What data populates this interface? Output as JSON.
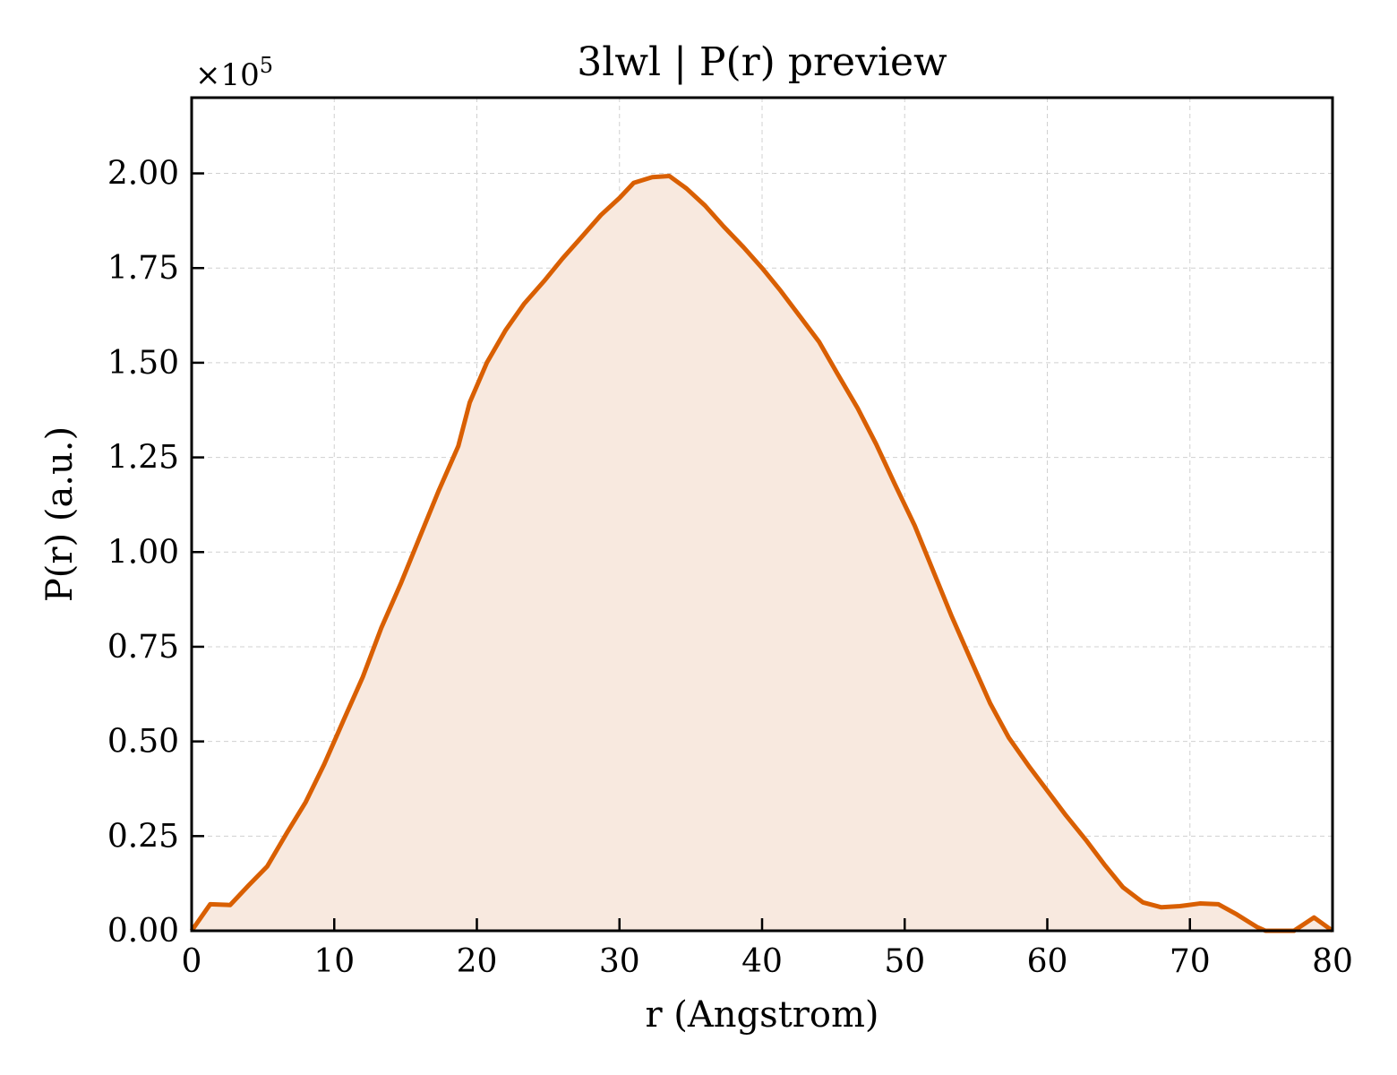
{
  "chart_data": {
    "type": "area",
    "title": "3lwl | P(r) preview",
    "xlabel": "r (Angstrom)",
    "ylabel": "P(r) (a.u.)",
    "y_multiplier": "×10",
    "y_multiplier_exp": "5",
    "xlim": [
      0,
      80
    ],
    "ylim": [
      0,
      2.2
    ],
    "x_ticks": [
      0,
      10,
      20,
      30,
      40,
      50,
      60,
      70,
      80
    ],
    "x_tick_labels": [
      "0",
      "10",
      "20",
      "30",
      "40",
      "50",
      "60",
      "70",
      "80"
    ],
    "y_ticks": [
      0,
      0.25,
      0.5,
      0.75,
      1.0,
      1.25,
      1.5,
      1.75,
      2.0
    ],
    "y_tick_labels": [
      "0.00",
      "0.25",
      "0.50",
      "0.75",
      "1.00",
      "1.25",
      "1.50",
      "1.75",
      "2.00"
    ],
    "grid": true,
    "line_color": "#d95f02",
    "fill_color": "#f8e9df",
    "series": [
      {
        "x": [
          0,
          1.3,
          2.7,
          4.0,
          5.3,
          6.7,
          8.0,
          9.3,
          10.7,
          12.0,
          13.3,
          14.7,
          16.0,
          17.3,
          18.7,
          19.5,
          20.7,
          22.0,
          23.3,
          24.7,
          26.0,
          27.3,
          28.7,
          30.0,
          31.0,
          32.3,
          33.5,
          34.7,
          36.0,
          37.3,
          38.7,
          40.0,
          41.3,
          42.7,
          44.0,
          45.3,
          46.7,
          48.0,
          49.3,
          50.7,
          52.0,
          53.3,
          54.7,
          56.0,
          57.3,
          58.7,
          60.0,
          61.3,
          62.7,
          64.0,
          65.3,
          66.7,
          68.0,
          69.3,
          70.7,
          72.0,
          73.3,
          74.7,
          75.3,
          76.0,
          77.3,
          78.7,
          80.0
        ],
        "y": [
          0,
          0.07,
          0.068,
          0.12,
          0.17,
          0.26,
          0.34,
          0.44,
          0.56,
          0.67,
          0.8,
          0.92,
          1.04,
          1.16,
          1.28,
          1.395,
          1.5,
          1.585,
          1.655,
          1.715,
          1.775,
          1.83,
          1.89,
          1.935,
          1.975,
          1.99,
          1.993,
          1.96,
          1.915,
          1.86,
          1.805,
          1.75,
          1.69,
          1.62,
          1.555,
          1.47,
          1.38,
          1.285,
          1.18,
          1.07,
          0.95,
          0.83,
          0.71,
          0.6,
          0.51,
          0.435,
          0.37,
          0.305,
          0.24,
          0.175,
          0.115,
          0.075,
          0.062,
          0.065,
          0.072,
          0.07,
          0.043,
          0.01,
          0.0,
          0.0,
          0.0,
          0.035,
          0.0
        ]
      }
    ]
  }
}
